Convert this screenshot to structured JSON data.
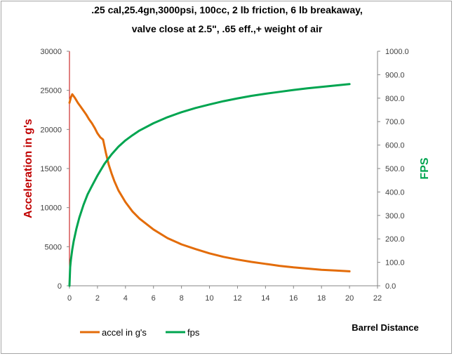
{
  "chart_data": {
    "type": "line",
    "title_line1": ".25 cal,25.4gn,3000psi, 100cc, 2 lb friction, 6 lb breakaway,",
    "title_line2": "valve close at 2.5\", .65 eff.,+ weight of air",
    "xlabel": "Barrel Distance",
    "ylabel_left": "Acceleration in g's",
    "ylabel_right": "FPS",
    "xlim": [
      0,
      22
    ],
    "x_ticks": [
      "0",
      "2",
      "4",
      "6",
      "8",
      "10",
      "12",
      "14",
      "16",
      "18",
      "20",
      "22"
    ],
    "ylim_left": [
      0,
      30000
    ],
    "y_ticks_left": [
      "0",
      "5000",
      "10000",
      "15000",
      "20000",
      "25000",
      "30000"
    ],
    "ylim_right": [
      0,
      1000
    ],
    "y_ticks_right": [
      "0.0",
      "100.0",
      "200.0",
      "300.0",
      "400.0",
      "500.0",
      "600.0",
      "700.0",
      "800.0",
      "900.0",
      "1000.0"
    ],
    "grid": false,
    "legend_position": "bottom-left",
    "series": [
      {
        "name": "accel  in  g's",
        "axis": "left",
        "color": "#e36c09",
        "x": [
          0,
          0.1,
          0.2,
          0.4,
          0.6,
          0.8,
          1.0,
          1.2,
          1.4,
          1.6,
          1.8,
          2.0,
          2.2,
          2.4,
          2.6,
          2.8,
          3.0,
          3.2,
          3.5,
          4.0,
          4.5,
          5.0,
          6.0,
          7.0,
          8.0,
          9.0,
          10.0,
          11.0,
          12.0,
          13.0,
          14.0,
          15.0,
          16.0,
          17.0,
          18.0,
          19.0,
          20.0
        ],
        "y": [
          23400,
          24100,
          24500,
          24000,
          23400,
          22900,
          22400,
          21900,
          21300,
          20800,
          20200,
          19500,
          19000,
          18700,
          17000,
          15500,
          14400,
          13400,
          12200,
          10700,
          9500,
          8600,
          7200,
          6100,
          5300,
          4700,
          4150,
          3700,
          3350,
          3050,
          2800,
          2550,
          2350,
          2200,
          2050,
          1950,
          1850
        ]
      },
      {
        "name": "fps",
        "axis": "right",
        "color": "#00a550",
        "x": [
          0,
          0.05,
          0.1,
          0.2,
          0.3,
          0.5,
          0.7,
          1.0,
          1.3,
          1.6,
          2.0,
          2.5,
          3.0,
          3.5,
          4.0,
          4.5,
          5.0,
          6.0,
          7.0,
          8.0,
          9.0,
          10.0,
          11.0,
          12.0,
          13.0,
          14.0,
          15.0,
          16.0,
          17.0,
          18.0,
          19.0,
          20.0
        ],
        "y": [
          0,
          80,
          110,
          155,
          190,
          245,
          290,
          345,
          390,
          425,
          470,
          520,
          560,
          593,
          620,
          642,
          662,
          693,
          719,
          740,
          758,
          773,
          787,
          799,
          810,
          819,
          827,
          835,
          842,
          848,
          854,
          860
        ]
      }
    ]
  }
}
